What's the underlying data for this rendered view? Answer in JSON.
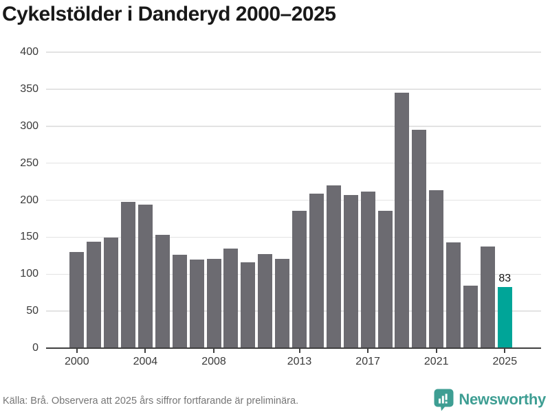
{
  "title": "Cykelstölder i Danderyd 2000–2025",
  "footer": {
    "source_note": "Källa: Brå. Observera att 2025 års siffror fortfarande är preliminära."
  },
  "branding": {
    "name": "Newsworthy",
    "logo_icon": "speech-bubble-bar-chart-exclamation",
    "color": "#3e9e93"
  },
  "colors": {
    "bar_default": "#6c6b71",
    "bar_accent": "#00a598",
    "gridline": "#e3e3e3",
    "axis": "#3f3f3f",
    "title_text": "#191919",
    "tick_label": "#3a3a3a",
    "footer_text": "#757575"
  },
  "chart_data": {
    "type": "bar",
    "title": "Cykelstölder i Danderyd 2000–2025",
    "x": [
      2000,
      2001,
      2002,
      2003,
      2004,
      2005,
      2006,
      2007,
      2008,
      2009,
      2010,
      2011,
      2012,
      2013,
      2014,
      2015,
      2016,
      2017,
      2018,
      2019,
      2020,
      2021,
      2022,
      2023,
      2024,
      2025
    ],
    "values": [
      130,
      144,
      149,
      198,
      194,
      153,
      126,
      120,
      121,
      135,
      116,
      127,
      121,
      186,
      209,
      220,
      207,
      212,
      186,
      345,
      295,
      213,
      143,
      84,
      137,
      83
    ],
    "highlight_year": 2025,
    "data_labels": [
      {
        "year": 2025,
        "text": "83"
      }
    ],
    "xlabel": "",
    "ylabel": "",
    "ylim": [
      0,
      400
    ],
    "yticks": [
      0,
      50,
      100,
      150,
      200,
      250,
      300,
      350,
      400
    ],
    "xticks": [
      2000,
      2004,
      2008,
      2013,
      2017,
      2021,
      2025
    ],
    "grid": "horizontal",
    "legend": "none"
  }
}
